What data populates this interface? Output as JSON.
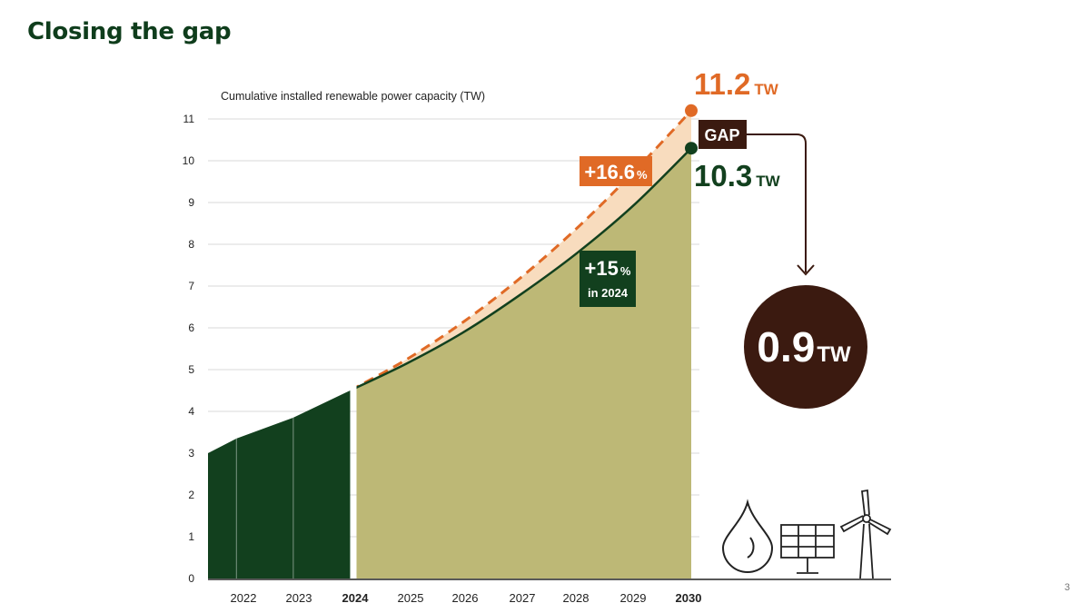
{
  "page": {
    "title": "Closing the gap",
    "page_number": "3"
  },
  "chart_data": {
    "type": "area",
    "title": "",
    "ylabel": "Cumulative installed renewable power capacity (TW)",
    "xlabel": "",
    "ylim": [
      0,
      11
    ],
    "yticks": [
      "0",
      "1",
      "2",
      "3",
      "4",
      "5",
      "6",
      "7",
      "8",
      "9",
      "10",
      "11"
    ],
    "x_ticks": [
      {
        "label": "2022",
        "bold": false
      },
      {
        "label": "2023",
        "bold": false
      },
      {
        "label": "2024",
        "bold": true
      },
      {
        "label": "2025",
        "bold": false
      },
      {
        "label": "2026",
        "bold": false
      },
      {
        "label": "2027",
        "bold": false
      },
      {
        "label": "2028",
        "bold": false
      },
      {
        "label": "2029",
        "bold": false
      },
      {
        "label": "2030",
        "bold": true
      }
    ],
    "grid": true,
    "historical": {
      "x": [
        2021.5,
        2022,
        2023,
        2024
      ],
      "y": [
        3.0,
        3.35,
        3.85,
        4.5
      ]
    },
    "series": [
      {
        "name": "+15% in 2024",
        "x": [
          2024,
          2025,
          2026,
          2027,
          2028,
          2029,
          2030
        ],
        "y": [
          4.5,
          5.15,
          5.9,
          6.8,
          7.8,
          8.95,
          10.3
        ],
        "style": "solid"
      },
      {
        "name": "+16.6%",
        "x": [
          2024,
          2025,
          2026,
          2027,
          2028,
          2029,
          2030
        ],
        "y": [
          4.5,
          5.25,
          6.15,
          7.2,
          8.4,
          9.75,
          11.2
        ],
        "style": "dashed"
      }
    ],
    "annotations": {
      "high": {
        "value": "11.2",
        "unit": "TW"
      },
      "low": {
        "value": "10.3",
        "unit": "TW"
      },
      "rate_high": {
        "value": "+16.6",
        "unit": "%"
      },
      "rate_low": {
        "value": "+15",
        "unit": "%",
        "note": "in 2024"
      },
      "gap_label": "GAP",
      "gap": {
        "value": "0.9",
        "unit": "TW"
      }
    },
    "colors": {
      "historical_fill": "#12401e",
      "projection_fill": "#bdb876",
      "gap_fill": "#f8dcbe",
      "dashed_line": "#e06a26",
      "solid_line": "#12401e",
      "gap_box": "#3b1a10",
      "gap_circle": "#3b1a10"
    },
    "icons": [
      "hydro-drop-icon",
      "solar-panel-icon",
      "wind-turbine-icon"
    ]
  }
}
